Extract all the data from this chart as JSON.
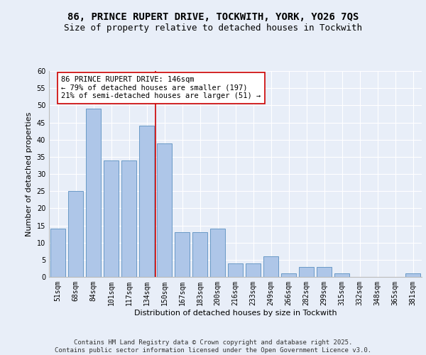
{
  "title_line1": "86, PRINCE RUPERT DRIVE, TOCKWITH, YORK, YO26 7QS",
  "title_line2": "Size of property relative to detached houses in Tockwith",
  "xlabel": "Distribution of detached houses by size in Tockwith",
  "ylabel": "Number of detached properties",
  "categories": [
    "51sqm",
    "68sqm",
    "84sqm",
    "101sqm",
    "117sqm",
    "134sqm",
    "150sqm",
    "167sqm",
    "183sqm",
    "200sqm",
    "216sqm",
    "233sqm",
    "249sqm",
    "266sqm",
    "282sqm",
    "299sqm",
    "315sqm",
    "332sqm",
    "348sqm",
    "365sqm",
    "381sqm"
  ],
  "values": [
    14,
    25,
    49,
    34,
    34,
    44,
    39,
    13,
    13,
    14,
    4,
    4,
    6,
    1,
    3,
    3,
    1,
    0,
    0,
    0,
    1
  ],
  "bar_color": "#aec6e8",
  "bar_edge_color": "#5a8fc0",
  "vline_x": 5.5,
  "vline_color": "#cc0000",
  "annotation_text": "86 PRINCE RUPERT DRIVE: 146sqm\n← 79% of detached houses are smaller (197)\n21% of semi-detached houses are larger (51) →",
  "annotation_box_color": "#ffffff",
  "annotation_box_edge": "#cc0000",
  "ylim": [
    0,
    60
  ],
  "yticks": [
    0,
    5,
    10,
    15,
    20,
    25,
    30,
    35,
    40,
    45,
    50,
    55,
    60
  ],
  "footer_text": "Contains HM Land Registry data © Crown copyright and database right 2025.\nContains public sector information licensed under the Open Government Licence v3.0.",
  "bg_color": "#e8eef8",
  "grid_color": "#ffffff",
  "title_fontsize": 10,
  "subtitle_fontsize": 9,
  "axis_label_fontsize": 8,
  "tick_fontsize": 7,
  "annotation_fontsize": 7.5,
  "footer_fontsize": 6.5
}
